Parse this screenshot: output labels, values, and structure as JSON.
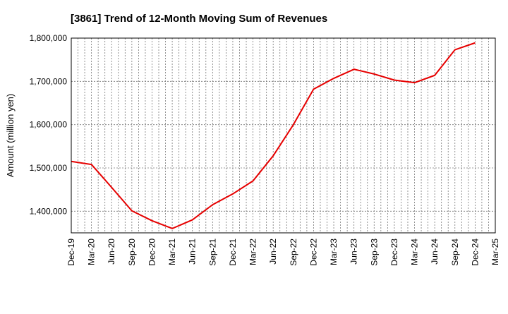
{
  "chart_data": {
    "type": "line",
    "title": "[3861]  Trend of 12-Month Moving Sum of Revenues",
    "xlabel": "",
    "ylabel": "Amount (million yen)",
    "ylim": [
      1350000,
      1800000
    ],
    "y_ticks": [
      1400000,
      1500000,
      1600000,
      1700000,
      1800000
    ],
    "y_tick_labels": [
      "1,400,000",
      "1,500,000",
      "1,600,000",
      "1,700,000",
      "1,800,000"
    ],
    "categories": [
      "Dec-19",
      "Mar-20",
      "Jun-20",
      "Sep-20",
      "Dec-20",
      "Mar-21",
      "Jun-21",
      "Sep-21",
      "Dec-21",
      "Mar-22",
      "Jun-22",
      "Sep-22",
      "Dec-22",
      "Mar-23",
      "Jun-23",
      "Sep-23",
      "Dec-23",
      "Mar-24",
      "Jun-24",
      "Sep-24",
      "Dec-24",
      "Mar-25"
    ],
    "grid": true,
    "series": [
      {
        "values": [
          1515000,
          1508000,
          1455000,
          1401000,
          1378000,
          1360000,
          1380000,
          1415000,
          1440000,
          1470000,
          1528000,
          1600000,
          1682000,
          1707000,
          1728000,
          1717000,
          1703000,
          1697000,
          1714000,
          1773000,
          1789000,
          null
        ],
        "color": "#e60000"
      }
    ]
  }
}
